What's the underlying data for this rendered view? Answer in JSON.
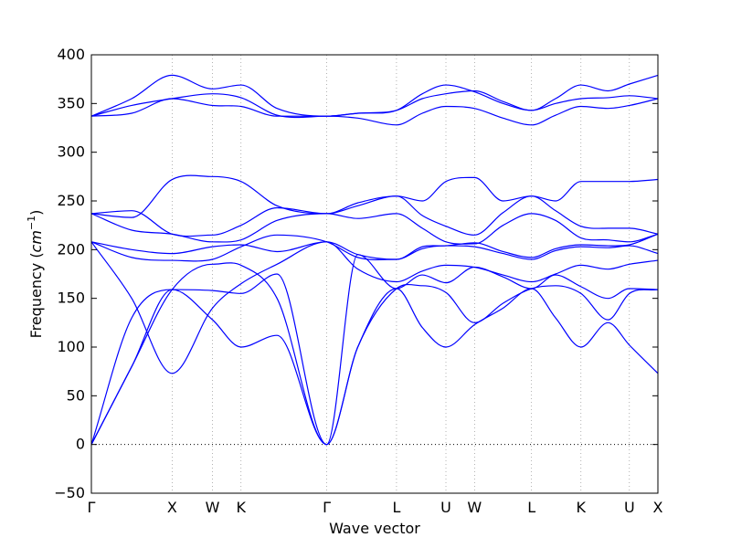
{
  "chart_data": {
    "type": "line",
    "xlabel": "Wave vector",
    "ylabel": "Frequency",
    "ylabel_unit": "cm",
    "ylabel_unit_exponent": "−1",
    "ylim": [
      -50,
      400
    ],
    "yticks": [
      -50,
      0,
      50,
      100,
      150,
      200,
      250,
      300,
      350,
      400
    ],
    "grid": false,
    "line_color": "#0000ff",
    "zero_line_color": "#000000",
    "x_ticks": [
      {
        "label": "Γ",
        "x": 0.0
      },
      {
        "label": "X",
        "x": 1.0
      },
      {
        "label": "W",
        "x": 1.5
      },
      {
        "label": "K",
        "x": 1.854
      },
      {
        "label": "Γ",
        "x": 2.915
      },
      {
        "label": "L",
        "x": 3.78
      },
      {
        "label": "U",
        "x": 4.392
      },
      {
        "label": "W",
        "x": 4.746
      },
      {
        "label": "L",
        "x": 5.453
      },
      {
        "label": "K",
        "x": 6.065
      },
      {
        "label": "U",
        "x": 6.665
      },
      {
        "label": "X",
        "x": 7.018
      }
    ],
    "series": [
      {
        "x": [
          0,
          0.5,
          1.0,
          1.5,
          1.854,
          2.3,
          2.915,
          3.3,
          3.78,
          4.1,
          4.392,
          4.746,
          5.1,
          5.453,
          5.75,
          6.065,
          6.4,
          6.665,
          7.018
        ],
        "y": [
          0,
          80,
          159,
          128,
          100,
          112,
          0,
          100,
          160,
          120,
          100,
          123,
          140,
          160,
          130,
          100,
          125,
          102,
          73
        ]
      },
      {
        "x": [
          0,
          0.5,
          1.0,
          1.5,
          1.854,
          2.3,
          2.915,
          3.3,
          3.78,
          4.1,
          4.392,
          4.746,
          5.1,
          5.453,
          5.75,
          6.065,
          6.4,
          6.665,
          7.018
        ],
        "y": [
          0,
          80,
          159,
          185,
          184,
          150,
          0,
          100,
          160,
          163,
          156,
          125,
          145,
          160,
          163,
          155,
          128,
          155,
          159
        ]
      },
      {
        "x": [
          0,
          0.5,
          1.0,
          1.5,
          1.854,
          2.3,
          2.915,
          3.3,
          3.78,
          4.1,
          4.392,
          4.746,
          5.1,
          5.453,
          5.75,
          6.065,
          6.4,
          6.665,
          7.018
        ],
        "y": [
          0,
          130,
          159,
          158,
          155,
          175,
          0,
          195,
          160,
          174,
          166,
          182,
          172,
          160,
          174,
          162,
          150,
          160,
          159
        ]
      },
      {
        "x": [
          0,
          0.5,
          1.0,
          1.5,
          1.854,
          2.3,
          2.915,
          3.3,
          3.78,
          4.1,
          4.392,
          4.746,
          5.1,
          5.453,
          5.75,
          6.065,
          6.4,
          6.665,
          7.018
        ],
        "y": [
          208,
          150,
          73,
          140,
          165,
          185,
          208,
          180,
          167,
          178,
          184,
          182,
          174,
          167,
          175,
          184,
          180,
          185,
          189
        ]
      },
      {
        "x": [
          0,
          0.5,
          1.0,
          1.5,
          1.854,
          2.3,
          2.915,
          3.3,
          3.78,
          4.1,
          4.392,
          4.746,
          5.1,
          5.453,
          5.75,
          6.065,
          6.4,
          6.665,
          7.018
        ],
        "y": [
          208,
          192,
          189,
          190,
          203,
          215,
          208,
          192,
          190,
          201,
          204,
          203,
          196,
          190,
          199,
          203,
          202,
          204,
          196
        ]
      },
      {
        "x": [
          0,
          0.5,
          1.0,
          1.5,
          1.854,
          2.3,
          2.915,
          3.3,
          3.78,
          4.1,
          4.392,
          4.746,
          5.1,
          5.453,
          5.75,
          6.065,
          6.4,
          6.665,
          7.018
        ],
        "y": [
          208,
          200,
          196,
          203,
          205,
          198,
          208,
          195,
          190,
          203,
          204,
          207,
          198,
          192,
          201,
          205,
          204,
          205,
          216
        ]
      },
      {
        "x": [
          0,
          0.5,
          1.0,
          1.5,
          1.854,
          2.3,
          2.915,
          3.3,
          3.78,
          4.1,
          4.392,
          4.746,
          5.1,
          5.453,
          5.75,
          6.065,
          6.4,
          6.665,
          7.018
        ],
        "y": [
          237,
          220,
          216,
          208,
          210,
          230,
          237,
          232,
          237,
          222,
          208,
          206,
          225,
          237,
          230,
          212,
          210,
          208,
          216
        ]
      },
      {
        "x": [
          0,
          0.5,
          1.0,
          1.5,
          1.854,
          2.3,
          2.915,
          3.3,
          3.78,
          4.1,
          4.392,
          4.746,
          5.1,
          5.453,
          5.75,
          6.065,
          6.4,
          6.665,
          7.018
        ],
        "y": [
          237,
          240,
          216,
          215,
          225,
          243,
          237,
          248,
          255,
          235,
          224,
          215,
          238,
          255,
          240,
          224,
          222,
          222,
          216
        ]
      },
      {
        "x": [
          0,
          0.5,
          1.0,
          1.5,
          1.854,
          2.3,
          2.915,
          3.3,
          3.78,
          4.1,
          4.392,
          4.746,
          5.1,
          5.453,
          5.75,
          6.065,
          6.4,
          6.665,
          7.018
        ],
        "y": [
          237,
          233,
          272,
          275,
          270,
          245,
          237,
          245,
          255,
          250,
          270,
          274,
          250,
          255,
          250,
          270,
          270,
          270,
          272
        ]
      },
      {
        "x": [
          0,
          0.5,
          1.0,
          1.5,
          1.854,
          2.3,
          2.915,
          3.3,
          3.78,
          4.1,
          4.392,
          4.746,
          5.1,
          5.453,
          5.75,
          6.065,
          6.4,
          6.665,
          7.018
        ],
        "y": [
          337,
          340,
          355,
          348,
          347,
          337,
          337,
          335,
          328,
          340,
          347,
          345,
          335,
          328,
          338,
          347,
          345,
          348,
          355
        ]
      },
      {
        "x": [
          0,
          0.5,
          1.0,
          1.5,
          1.854,
          2.3,
          2.915,
          3.3,
          3.78,
          4.1,
          4.392,
          4.746,
          5.1,
          5.453,
          5.75,
          6.065,
          6.4,
          6.665,
          7.018
        ],
        "y": [
          337,
          348,
          355,
          360,
          356,
          338,
          337,
          340,
          343,
          355,
          360,
          363,
          352,
          343,
          350,
          355,
          356,
          358,
          355
        ]
      },
      {
        "x": [
          0,
          0.5,
          1.0,
          1.5,
          1.854,
          2.3,
          2.915,
          3.3,
          3.78,
          4.1,
          4.392,
          4.746,
          5.1,
          5.453,
          5.75,
          6.065,
          6.4,
          6.665,
          7.018
        ],
        "y": [
          337,
          355,
          379,
          365,
          369,
          345,
          337,
          340,
          343,
          360,
          369,
          362,
          350,
          343,
          355,
          369,
          363,
          370,
          379
        ]
      }
    ]
  }
}
